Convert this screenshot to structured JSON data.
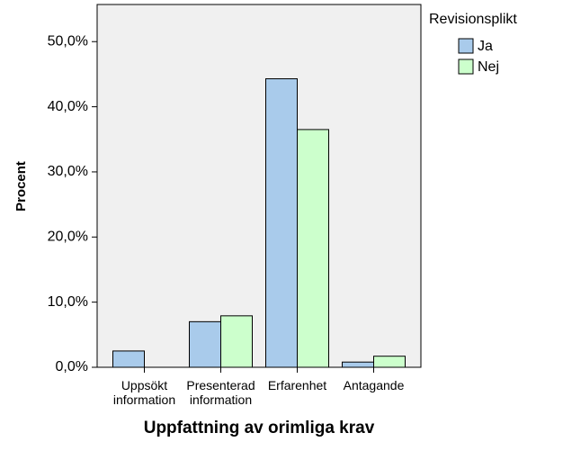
{
  "chart_data": {
    "type": "bar",
    "x_label": "Uppfattning av orimliga krav",
    "y_label": "Procent",
    "categories": [
      [
        "Uppsökt",
        "information"
      ],
      [
        "Presenterad",
        "information"
      ],
      [
        "Erfarenhet"
      ],
      [
        "Antagande"
      ]
    ],
    "legend_title": "Revisionsplikt",
    "legend_position": "right",
    "series": [
      {
        "name": "Ja",
        "color": "#a9cbeb",
        "values": [
          2.5,
          7.0,
          44.3,
          0.8
        ]
      },
      {
        "name": "Nej",
        "color": "#ccffcc",
        "values": [
          0,
          7.9,
          36.5,
          1.7
        ]
      }
    ],
    "ylim": [
      0,
      55.7
    ],
    "yticks": [
      {
        "value": 0,
        "label": "0,0%"
      },
      {
        "value": 10,
        "label": "10,0%"
      },
      {
        "value": 20,
        "label": "20,0%"
      },
      {
        "value": 30,
        "label": "30,0%"
      },
      {
        "value": 40,
        "label": "40,0%"
      },
      {
        "value": 50,
        "label": "50,0%"
      }
    ],
    "plot_background": "#f0f0f0"
  }
}
